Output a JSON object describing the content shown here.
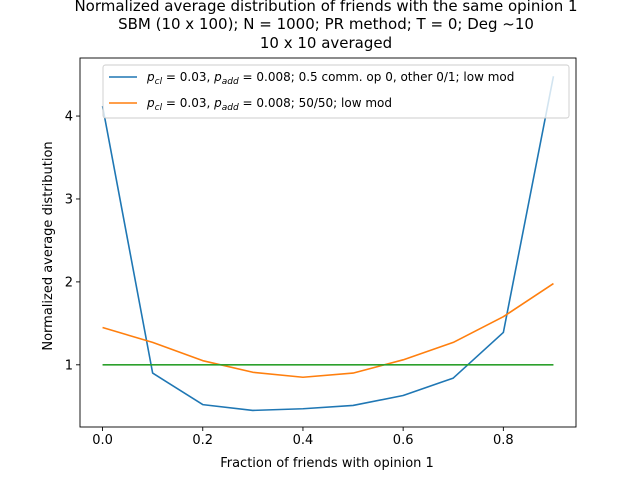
{
  "chart_data": {
    "type": "line",
    "title": [
      "Normalized average distribution of friends with the same opinion 1",
      "SBM (10 x 100); N = 1000; PR method; T = 0; Deg  ~10",
      "10 x 10 averaged"
    ],
    "xlabel": "Fraction of friends with opinion 1",
    "ylabel": "Normalized average distribution",
    "xlim": [
      -0.045,
      0.945
    ],
    "ylim": [
      0.25,
      4.7
    ],
    "xticks": [
      0.0,
      0.2,
      0.4,
      0.6,
      0.8
    ],
    "xtick_labels": [
      "0.0",
      "0.2",
      "0.4",
      "0.6",
      "0.8"
    ],
    "yticks": [
      1,
      2,
      3,
      4
    ],
    "ytick_labels": [
      "1",
      "2",
      "3",
      "4"
    ],
    "grid": false,
    "legend_position": "top-right",
    "x": [
      0.0,
      0.1,
      0.2,
      0.3,
      0.4,
      0.5,
      0.6,
      0.7,
      0.8,
      0.9
    ],
    "series": [
      {
        "name": "p_cl = 0.03, p_add = 0.008; 0.5 comm. op 0, other 0/1; low mod",
        "color": "#1f77b4",
        "values": [
          4.12,
          0.9,
          0.52,
          0.45,
          0.47,
          0.51,
          0.63,
          0.84,
          1.39,
          4.48
        ]
      },
      {
        "name": "p_cl = 0.03, p_add = 0.008; 50/50; low mod",
        "color": "#ff7f0e",
        "values": [
          1.45,
          1.27,
          1.05,
          0.91,
          0.85,
          0.9,
          1.06,
          1.27,
          1.58,
          1.98
        ]
      },
      {
        "color": "#2ca02c",
        "values": [
          1,
          1,
          1,
          1,
          1,
          1,
          1,
          1,
          1,
          1
        ]
      }
    ],
    "legend": [
      {
        "series": 0,
        "prefix_var": "p",
        "sub1": "cl",
        "mid": " = 0.03, ",
        "sub2": "add",
        "suffix": " = 0.008; 0.5 comm. op 0, other 0/1; low mod"
      },
      {
        "series": 1,
        "prefix_var": "p",
        "sub1": "cl",
        "mid": " = 0.03, ",
        "sub2": "add",
        "suffix": " = 0.008; 50/50; low mod"
      }
    ]
  }
}
